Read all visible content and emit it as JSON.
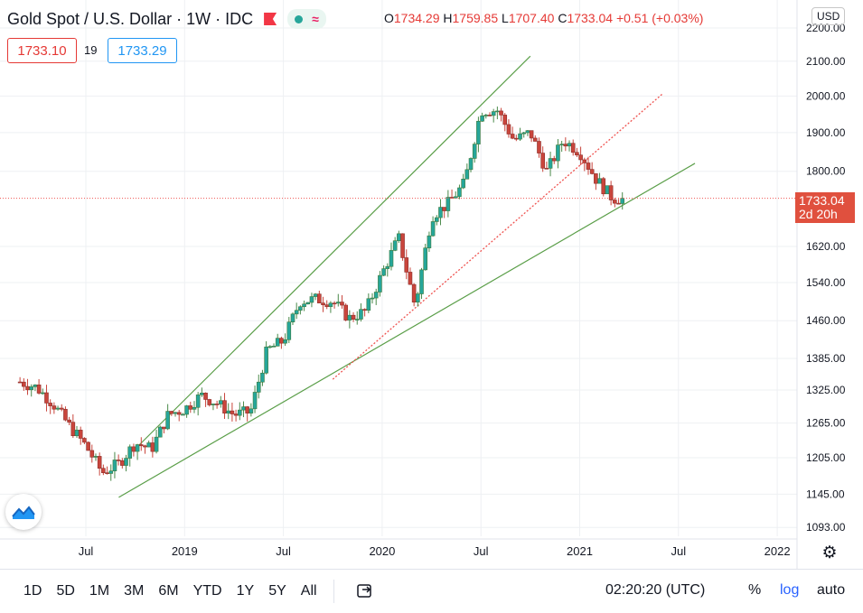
{
  "header": {
    "title": "Gold Spot / U.S. Dollar · 1W · IDC",
    "ohlc": {
      "o_label": "O",
      "o": "1734.29",
      "h_label": "H",
      "h": "1759.85",
      "l_label": "L",
      "l": "1707.40",
      "c_label": "C",
      "c": "1733.04",
      "change": "+0.51 (+0.03%)"
    },
    "bid": "1733.10",
    "spread": "19",
    "ask": "1733.29"
  },
  "currency": "USD",
  "price_tag": {
    "price": "1733.04",
    "countdown": "2d 20h"
  },
  "bottom": {
    "ranges": [
      "1D",
      "5D",
      "1M",
      "3M",
      "6M",
      "YTD",
      "1Y",
      "5Y",
      "All"
    ],
    "clock": "02:20:20 (UTC)",
    "percent": "%",
    "log": "log",
    "auto": "auto"
  },
  "colors": {
    "up": "#26a69a",
    "upWick": "#4a8a4a",
    "down": "#c9453c",
    "trend": "#5a9e48",
    "dotted": "#ef5350",
    "grid": "#eef0f3",
    "tag": "#e0503e"
  },
  "icons": {
    "logo": "tradingview-logo-icon",
    "settings": "gear-icon",
    "compare": "compare-icon",
    "flag": "flag-icon"
  },
  "chart_data": {
    "type": "candlestick",
    "scale": "log",
    "interval": "1W",
    "ylim": [
      1085,
      2200
    ],
    "y_ticks": [
      2200,
      2100,
      2000,
      1900,
      1800,
      1620,
      1540,
      1460,
      1385,
      1325,
      1265,
      1205,
      1145,
      1093
    ],
    "y_tick_labels": [
      "2200.00",
      "2100.00",
      "2000.00",
      "1900.00",
      "1800.00",
      "1620.00",
      "1540.00",
      "1460.00",
      "1385.00",
      "1325.00",
      "1265.00",
      "1205.00",
      "1145.00",
      "1093.00"
    ],
    "x_ticks": [
      "Jul",
      "2019",
      "Jul",
      "2020",
      "Jul",
      "2021",
      "Jul",
      "2022"
    ],
    "last_price": 1733.04,
    "anchors": [
      {
        "t": "2018-03",
        "p": 1340
      },
      {
        "t": "2018-04",
        "p": 1330
      },
      {
        "t": "2018-05",
        "p": 1300
      },
      {
        "t": "2018-06",
        "p": 1260
      },
      {
        "t": "2018-07",
        "p": 1225
      },
      {
        "t": "2018-08",
        "p": 1180
      },
      {
        "t": "2018-09",
        "p": 1195
      },
      {
        "t": "2018-10",
        "p": 1230
      },
      {
        "t": "2018-11",
        "p": 1220
      },
      {
        "t": "2018-12",
        "p": 1280
      },
      {
        "t": "2019-01",
        "p": 1290
      },
      {
        "t": "2019-02",
        "p": 1315
      },
      {
        "t": "2019-03",
        "p": 1300
      },
      {
        "t": "2019-04",
        "p": 1280
      },
      {
        "t": "2019-05",
        "p": 1285
      },
      {
        "t": "2019-06",
        "p": 1400
      },
      {
        "t": "2019-07",
        "p": 1420
      },
      {
        "t": "2019-08",
        "p": 1500
      },
      {
        "t": "2019-09",
        "p": 1505
      },
      {
        "t": "2019-10",
        "p": 1500
      },
      {
        "t": "2019-11",
        "p": 1465
      },
      {
        "t": "2019-12",
        "p": 1480
      },
      {
        "t": "2020-01",
        "p": 1560
      },
      {
        "t": "2020-02",
        "p": 1640
      },
      {
        "t": "2020-03",
        "p": 1490
      },
      {
        "t": "2020-04",
        "p": 1690
      },
      {
        "t": "2020-05",
        "p": 1720
      },
      {
        "t": "2020-06",
        "p": 1770
      },
      {
        "t": "2020-07",
        "p": 1960
      },
      {
        "t": "2020-08",
        "p": 1960
      },
      {
        "t": "2020-09",
        "p": 1880
      },
      {
        "t": "2020-10",
        "p": 1900
      },
      {
        "t": "2020-11",
        "p": 1800
      },
      {
        "t": "2020-12",
        "p": 1880
      },
      {
        "t": "2021-01",
        "p": 1850
      },
      {
        "t": "2021-02",
        "p": 1780
      },
      {
        "t": "2021-03",
        "p": 1733
      }
    ],
    "trendlines": [
      {
        "name": "upper channel",
        "from": {
          "t": "2018-10",
          "p": 1220
        },
        "to": {
          "t": "2020-10",
          "p": 2115
        }
      },
      {
        "name": "lower support",
        "from": {
          "t": "2018-09",
          "p": 1140
        },
        "to": {
          "t": "2021-08",
          "p": 1820
        }
      },
      {
        "name": "dotted trend",
        "style": "dotted",
        "from": {
          "t": "2019-10",
          "p": 1345
        },
        "to": {
          "t": "2021-06",
          "p": 2005
        }
      }
    ]
  }
}
